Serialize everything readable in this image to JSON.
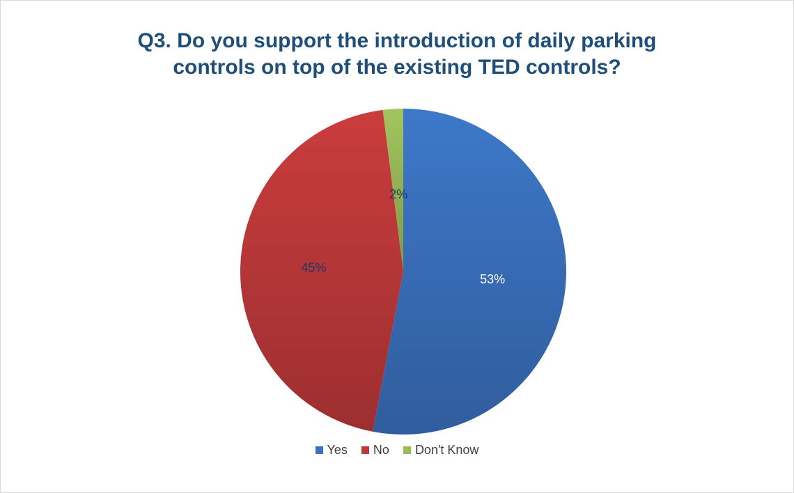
{
  "chart_data": {
    "type": "pie",
    "title_lines": [
      "Q3. Do you support the introduction of daily parking",
      "controls on top of the existing TED controls?"
    ],
    "categories": [
      "Yes",
      "No",
      "Don't Know"
    ],
    "values": [
      53,
      45,
      2
    ],
    "data_labels": [
      "53%",
      "45%",
      "2%"
    ],
    "colors": [
      "#3a72bf",
      "#c0393a",
      "#9bbb59"
    ],
    "legend_position": "bottom"
  }
}
